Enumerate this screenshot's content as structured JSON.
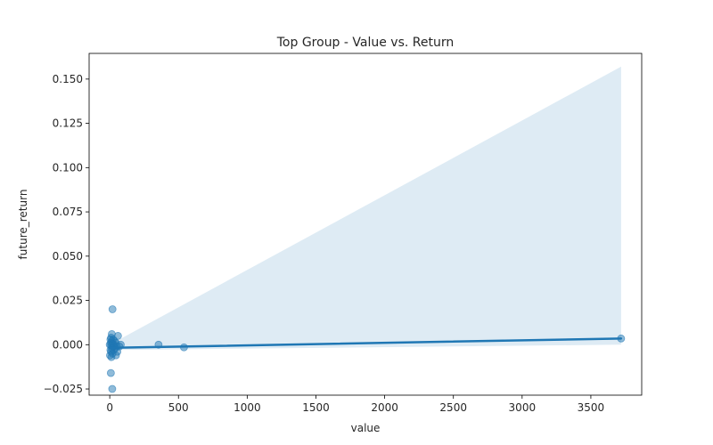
{
  "chart_data": {
    "type": "scatter",
    "title": "Top Group - Value vs. Return",
    "xlabel": "value",
    "ylabel": "future_return",
    "xlim": [
      -150,
      3870
    ],
    "ylim": [
      -0.0285,
      0.1645
    ],
    "xticks": [
      0,
      500,
      1000,
      1500,
      2000,
      2500,
      3000,
      3500
    ],
    "xtick_labels": [
      "0",
      "500",
      "1000",
      "1500",
      "2000",
      "2500",
      "3000",
      "3500"
    ],
    "yticks": [
      -0.025,
      0,
      0.025,
      0.05,
      0.075,
      0.1,
      0.125,
      0.15
    ],
    "ytick_labels": [
      "−0.025",
      "0.000",
      "0.025",
      "0.050",
      "0.075",
      "0.100",
      "0.125",
      "0.150"
    ],
    "grid": false,
    "legend": "none",
    "colors": {
      "points": "#1f77b4",
      "line": "#1f77b4",
      "band": "#1f77b4"
    },
    "points": [
      {
        "x": 20,
        "y": 0.02
      },
      {
        "x": 15,
        "y": 0.006
      },
      {
        "x": 60,
        "y": 0.005
      },
      {
        "x": 10,
        "y": 0.004
      },
      {
        "x": 25,
        "y": 0.003
      },
      {
        "x": 5,
        "y": 0.003
      },
      {
        "x": 35,
        "y": 0.002
      },
      {
        "x": 15,
        "y": 0.002
      },
      {
        "x": 45,
        "y": 0.001
      },
      {
        "x": 8,
        "y": 0.001
      },
      {
        "x": 20,
        "y": 0.0005
      },
      {
        "x": 30,
        "y": 0.0
      },
      {
        "x": 0,
        "y": 0.0
      },
      {
        "x": 10,
        "y": -0.0005
      },
      {
        "x": 50,
        "y": -0.001
      },
      {
        "x": 25,
        "y": -0.001
      },
      {
        "x": 80,
        "y": 0.0
      },
      {
        "x": 70,
        "y": -0.001
      },
      {
        "x": 40,
        "y": -0.002
      },
      {
        "x": 15,
        "y": -0.002
      },
      {
        "x": 5,
        "y": -0.003
      },
      {
        "x": 30,
        "y": -0.003
      },
      {
        "x": 55,
        "y": -0.004
      },
      {
        "x": 10,
        "y": -0.004
      },
      {
        "x": 20,
        "y": -0.005
      },
      {
        "x": 2,
        "y": -0.006
      },
      {
        "x": 45,
        "y": -0.006
      },
      {
        "x": 12,
        "y": -0.007
      },
      {
        "x": 8,
        "y": -0.016
      },
      {
        "x": 18,
        "y": -0.025
      },
      {
        "x": 355,
        "y": 0.0
      },
      {
        "x": 540,
        "y": -0.0015
      },
      {
        "x": 3720,
        "y": 0.0035
      }
    ],
    "regression": {
      "x": [
        0,
        3720
      ],
      "y": [
        -0.0018,
        0.0035
      ],
      "ci_upper": [
        0.0,
        0.157
      ],
      "ci_lower": [
        -0.003,
        0.0
      ]
    }
  }
}
